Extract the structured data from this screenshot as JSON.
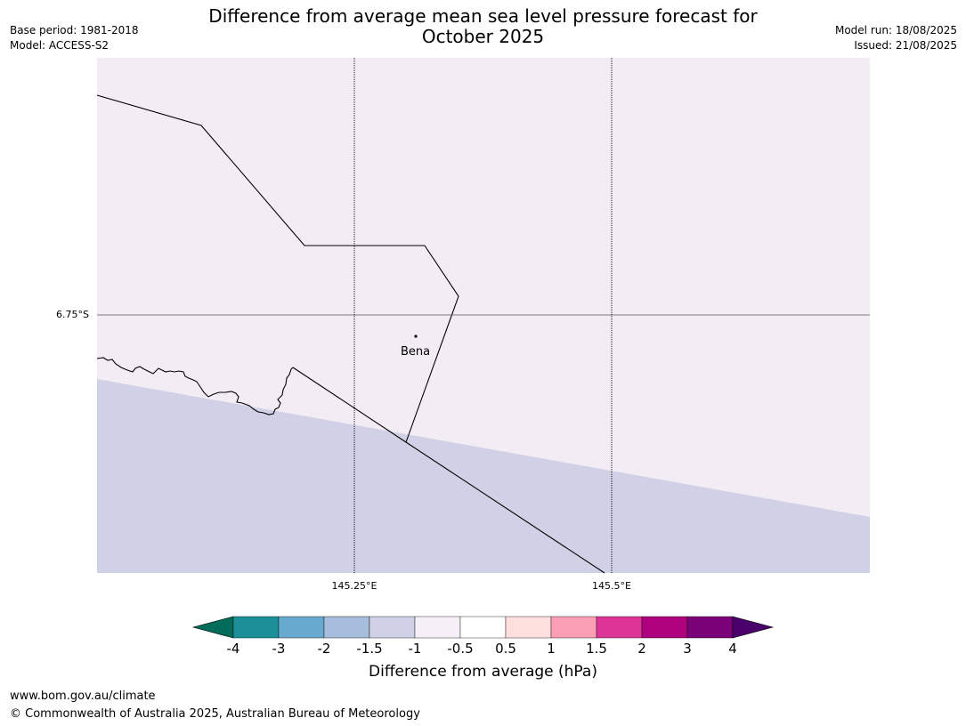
{
  "header": {
    "title_line1": "Difference from average mean sea level pressure forecast for",
    "title_line2": "October 2025",
    "base_period": "Base period: 1981-2018",
    "model": "Model: ACCESS-S2",
    "model_run": "Model run: 18/08/2025",
    "issued": "Issued: 21/08/2025"
  },
  "map": {
    "lat_labels": [
      "6.75°S"
    ],
    "lon_labels": [
      "145.25°E",
      "145.5°E"
    ],
    "place_name": "Bena",
    "background_class_color": "#f4ecf5",
    "lower_class_color": "#d0d1e6"
  },
  "colorbar": {
    "ticks": [
      "-4",
      "-3",
      "-2",
      "-1.5",
      "-1",
      "-0.5",
      "0.5",
      "1",
      "1.5",
      "2",
      "3",
      "4"
    ],
    "colors": [
      "#016c59",
      "#1c9099",
      "#67a9cf",
      "#a6bddb",
      "#d0d1e6",
      "#f6eff7",
      "#ffffff",
      "#fde0dd",
      "#fa9fb5",
      "#dd3497",
      "#ae017e",
      "#7a0177",
      "#49006a"
    ],
    "label": "Difference from average (hPa)"
  },
  "footer": {
    "url": "www.bom.gov.au/climate",
    "copyright": "© Commonwealth of Australia 2025, Australian Bureau of Meteorology"
  }
}
